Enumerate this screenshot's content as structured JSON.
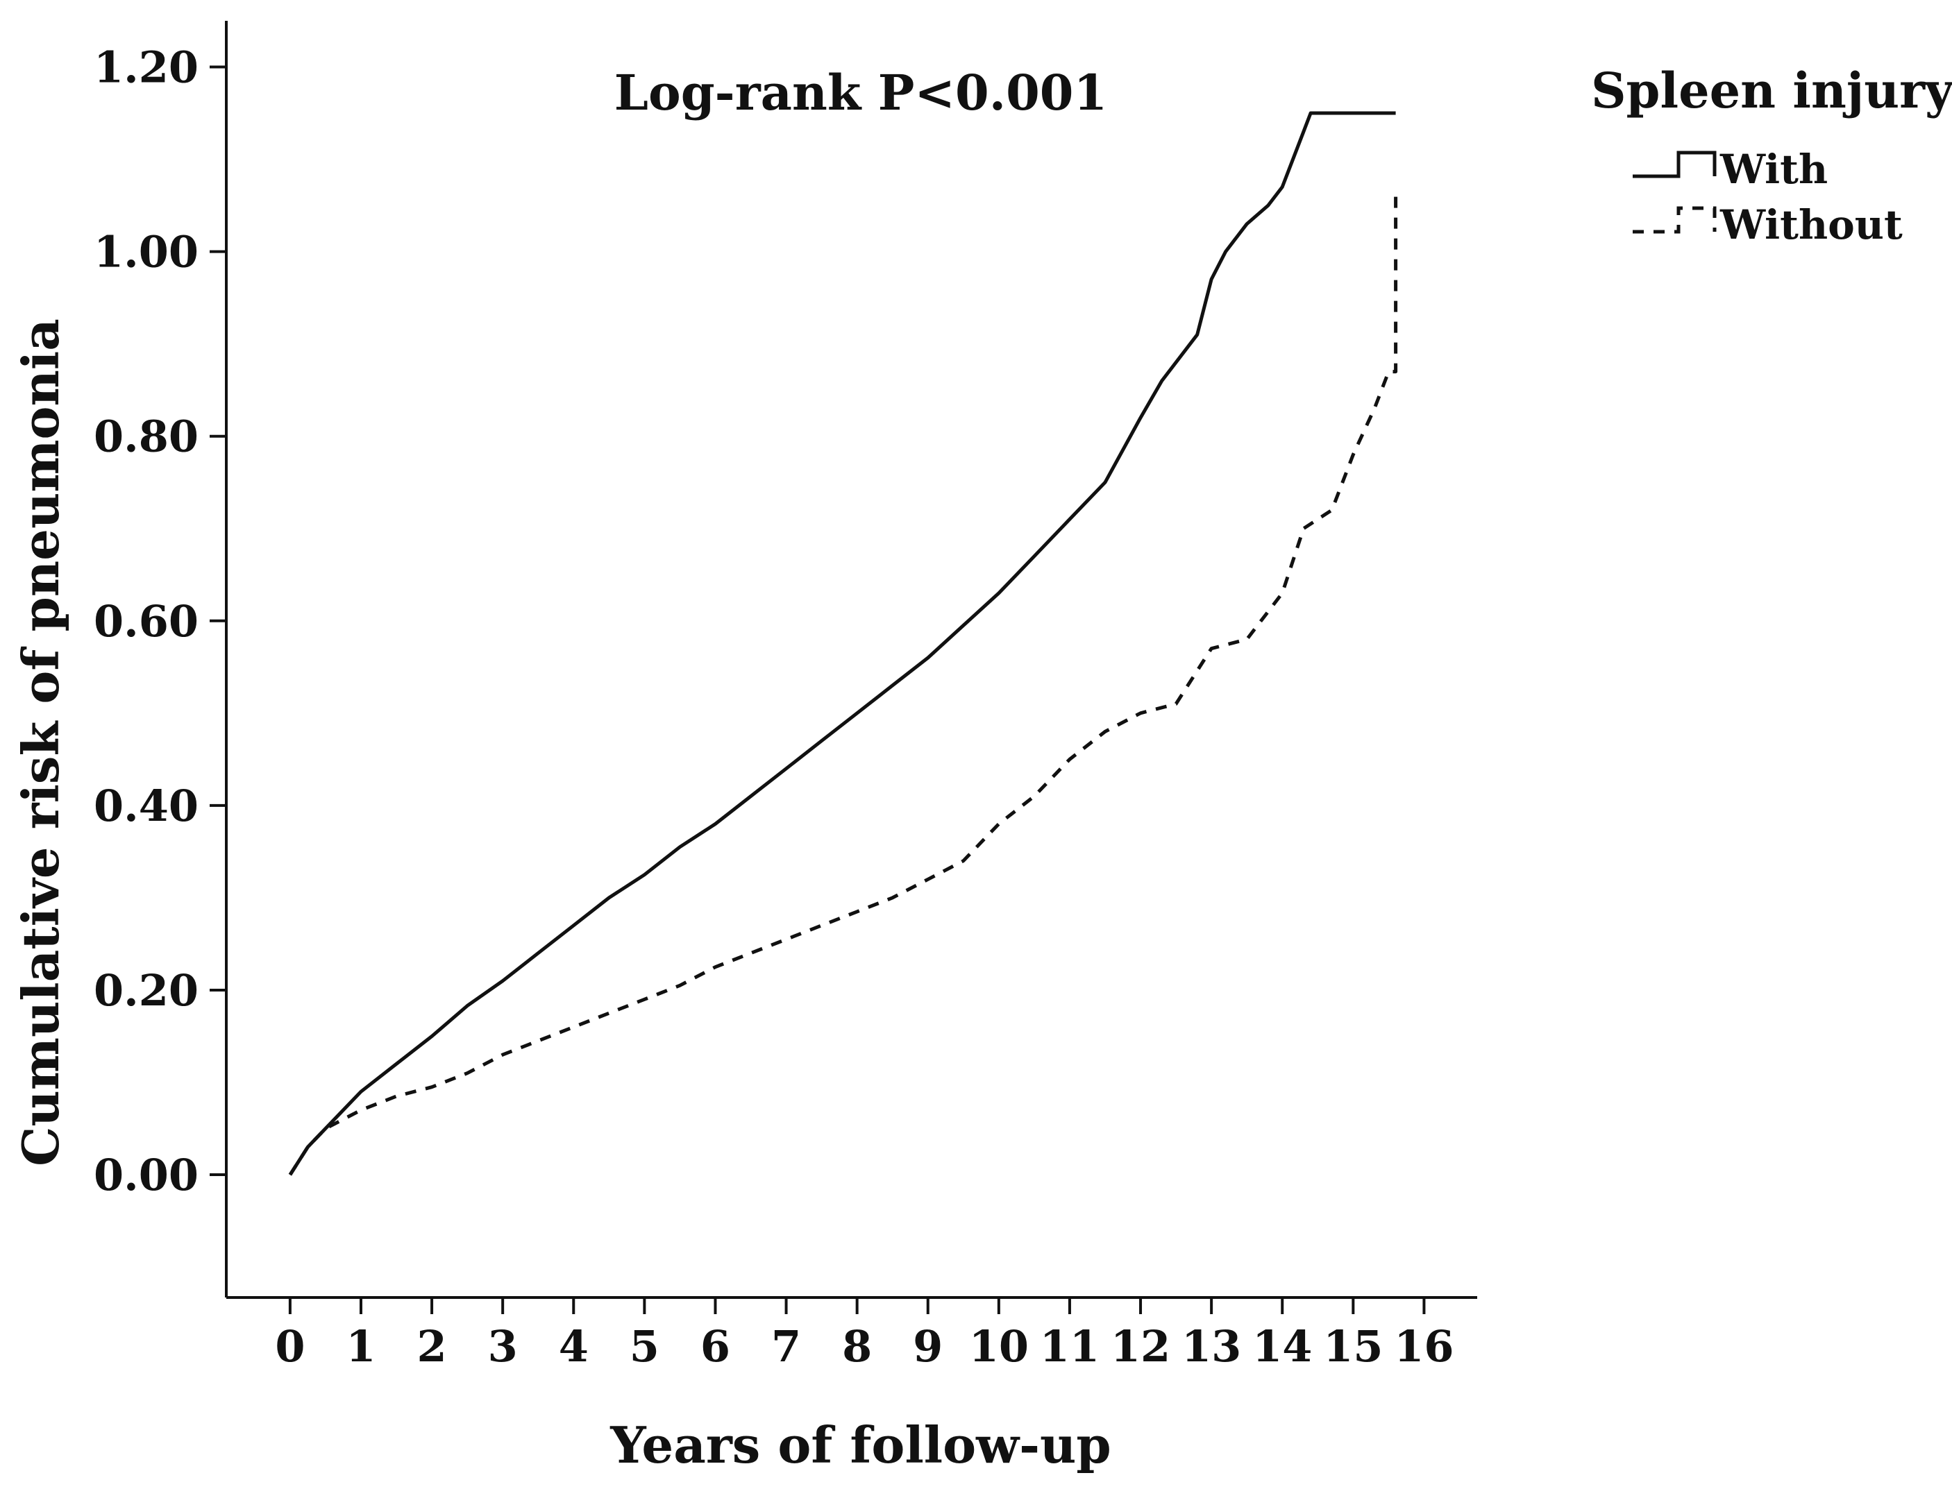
{
  "chart_data": {
    "type": "line",
    "title": "",
    "annotation": "Log-rank P<0.001",
    "xlabel": "Years of follow-up",
    "ylabel": "Cumulative risk of pneumonia",
    "xlim": [
      -0.9,
      16.75
    ],
    "ylim": [
      -0.133,
      1.25
    ],
    "xticks": [
      0,
      1,
      2,
      3,
      4,
      5,
      6,
      7,
      8,
      9,
      10,
      11,
      12,
      13,
      14,
      15,
      16
    ],
    "xtick_labels": [
      "0",
      "1",
      "2",
      "3",
      "4",
      "5",
      "6",
      "7",
      "8",
      "9",
      "10",
      "11",
      "12",
      "13",
      "14",
      "15",
      "16"
    ],
    "yticks": [
      0.0,
      0.2,
      0.4,
      0.6,
      0.8,
      1.0,
      1.2
    ],
    "ytick_labels": [
      "0.00",
      "0.20",
      "0.40",
      "0.60",
      "0.80",
      "1.00",
      "1.20"
    ],
    "grid": false,
    "legend": {
      "title": "Spleen injury",
      "position": "outside-top-right"
    },
    "series": [
      {
        "name": "With",
        "style": "solid",
        "step": false,
        "x": [
          0,
          0.25,
          0.5,
          1,
          1.5,
          2,
          2.5,
          3,
          3.5,
          4,
          4.5,
          5,
          5.5,
          6,
          6.5,
          7,
          7.5,
          8,
          8.5,
          9,
          9.5,
          10,
          10.5,
          11,
          11.5,
          12,
          12.3,
          12.8,
          13.0,
          13.2,
          13.5,
          13.8,
          14.0,
          14.3,
          14.4,
          15.6
        ],
        "y": [
          0.0,
          0.03,
          0.05,
          0.09,
          0.12,
          0.15,
          0.183,
          0.21,
          0.24,
          0.27,
          0.3,
          0.325,
          0.355,
          0.38,
          0.41,
          0.44,
          0.47,
          0.5,
          0.53,
          0.56,
          0.595,
          0.63,
          0.67,
          0.71,
          0.75,
          0.82,
          0.86,
          0.91,
          0.97,
          1.0,
          1.03,
          1.05,
          1.07,
          1.13,
          1.15,
          1.15
        ]
      },
      {
        "name": "Without",
        "style": "dashed",
        "step": false,
        "x": [
          0,
          0.25,
          0.5,
          1,
          1.5,
          2,
          2.5,
          3,
          3.5,
          4,
          4.5,
          5,
          5.5,
          6,
          6.5,
          7,
          7.5,
          8,
          8.5,
          9,
          9.5,
          10,
          10.5,
          11,
          11.5,
          12,
          12.5,
          13,
          13.5,
          14,
          14.3,
          14.7,
          15.0,
          15.3,
          15.5,
          15.6,
          15.6
        ],
        "y": [
          0.0,
          0.03,
          0.05,
          0.07,
          0.085,
          0.095,
          0.11,
          0.13,
          0.145,
          0.16,
          0.175,
          0.19,
          0.205,
          0.225,
          0.24,
          0.255,
          0.27,
          0.285,
          0.3,
          0.32,
          0.34,
          0.38,
          0.41,
          0.45,
          0.48,
          0.5,
          0.51,
          0.57,
          0.58,
          0.63,
          0.7,
          0.72,
          0.78,
          0.83,
          0.87,
          0.87,
          1.06
        ]
      }
    ]
  }
}
